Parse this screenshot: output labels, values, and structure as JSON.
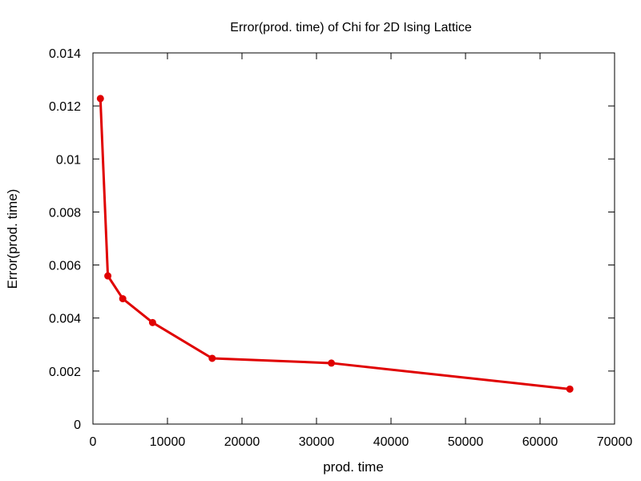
{
  "chart_data": {
    "type": "line",
    "title": "Error(prod. time) of Chi for 2D Ising Lattice",
    "xlabel": "prod. time",
    "ylabel": "Error(prod. time)",
    "xlim": [
      0,
      70000
    ],
    "ylim": [
      0,
      0.014
    ],
    "xticks": [
      "0",
      "10000",
      "20000",
      "30000",
      "40000",
      "50000",
      "60000",
      "70000"
    ],
    "yticks": [
      "0",
      "0.002",
      "0.004",
      "0.006",
      "0.008",
      "0.01",
      "0.012",
      "0.014"
    ],
    "grid": false,
    "legend": false,
    "series": [
      {
        "color": "#e00000",
        "x": [
          1000,
          2000,
          4000,
          8000,
          16000,
          32000,
          64000
        ],
        "y": [
          0.01228,
          0.00559,
          0.00473,
          0.00383,
          0.00248,
          0.0023,
          0.00132
        ]
      }
    ]
  }
}
